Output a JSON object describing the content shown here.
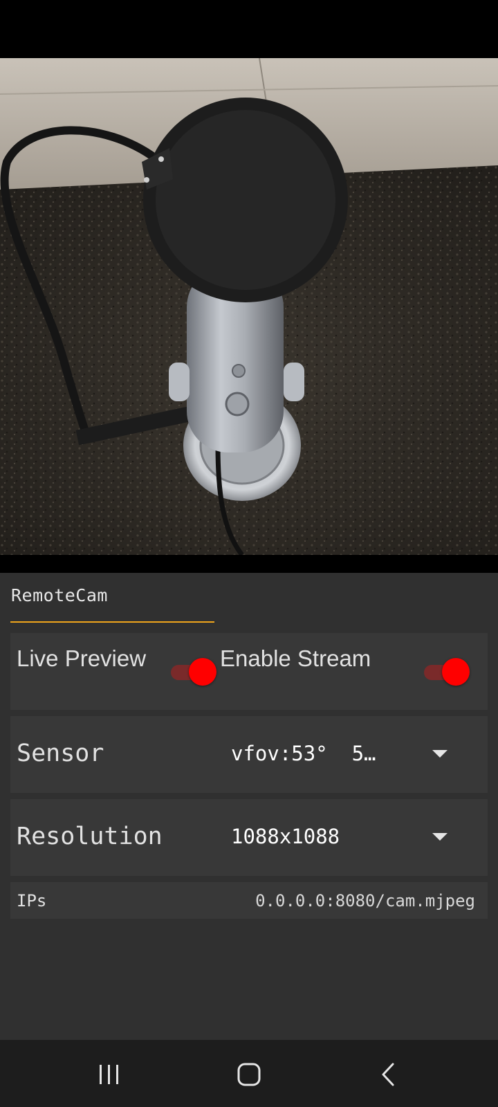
{
  "preview": {
    "subject": "camera-preview-microphone-icon"
  },
  "tabs": [
    {
      "label": "RemoteCam",
      "active": true
    }
  ],
  "switches": {
    "live_preview": {
      "label": "Live Preview",
      "on": true
    },
    "enable_stream": {
      "label": "Enable Stream",
      "on": true
    }
  },
  "sensor": {
    "label": "Sensor",
    "value": "vfov:53°  5…"
  },
  "resolution": {
    "label": "Resolution",
    "value": "1088x1088"
  },
  "ips": {
    "label": "IPs",
    "value": "0.0.0.0:8080/cam.mjpeg"
  },
  "nav": {
    "recents": "recents-icon",
    "home": "home-icon",
    "back": "back-icon"
  },
  "colors": {
    "accent": "#f0a61c",
    "switch_thumb": "#ff0000",
    "panel_bg": "#303030",
    "card_bg": "#383838"
  }
}
